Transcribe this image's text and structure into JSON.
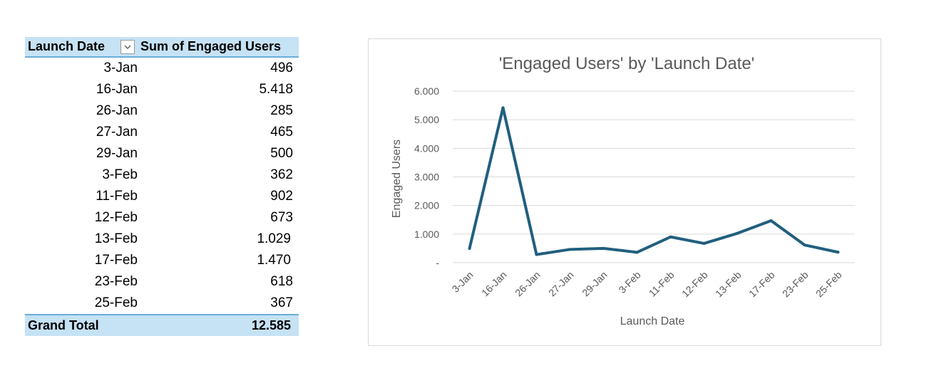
{
  "pivot": {
    "header": {
      "col1": "Launch Date",
      "col2": "Sum of Engaged Users",
      "filter_icon": "chevron-down-icon"
    },
    "rows": [
      {
        "date": "3-Jan",
        "value": "496"
      },
      {
        "date": "16-Jan",
        "value": "5.418"
      },
      {
        "date": "26-Jan",
        "value": "285"
      },
      {
        "date": "27-Jan",
        "value": "465"
      },
      {
        "date": "29-Jan",
        "value": "500"
      },
      {
        "date": "3-Feb",
        "value": "362"
      },
      {
        "date": "11-Feb",
        "value": "902"
      },
      {
        "date": "12-Feb",
        "value": "673"
      },
      {
        "date": "13-Feb",
        "value": "1.029"
      },
      {
        "date": "17-Feb",
        "value": "1.470"
      },
      {
        "date": "23-Feb",
        "value": "618"
      },
      {
        "date": "25-Feb",
        "value": "367"
      }
    ],
    "total": {
      "label": "Grand Total",
      "value": "12.585"
    }
  },
  "chart_data": {
    "type": "line",
    "title": "'Engaged Users' by 'Launch Date'",
    "xlabel": "Launch Date",
    "ylabel": "Engaged Users",
    "categories": [
      "3-Jan",
      "16-Jan",
      "26-Jan",
      "27-Jan",
      "29-Jan",
      "3-Feb",
      "11-Feb",
      "12-Feb",
      "13-Feb",
      "17-Feb",
      "23-Feb",
      "25-Feb"
    ],
    "series": [
      {
        "values": [
          496,
          5418,
          285,
          465,
          500,
          362,
          902,
          673,
          1029,
          1470,
          618,
          367
        ]
      }
    ],
    "ylim": [
      0,
      6000
    ],
    "yticks": [
      0,
      1000,
      2000,
      3000,
      4000,
      5000,
      6000
    ],
    "ytick_labels": [
      "-",
      "1.000",
      "2.000",
      "3.000",
      "4.000",
      "5.000",
      "6.000"
    ],
    "grid": true,
    "legend": "none",
    "line_color": "#215f7f"
  }
}
